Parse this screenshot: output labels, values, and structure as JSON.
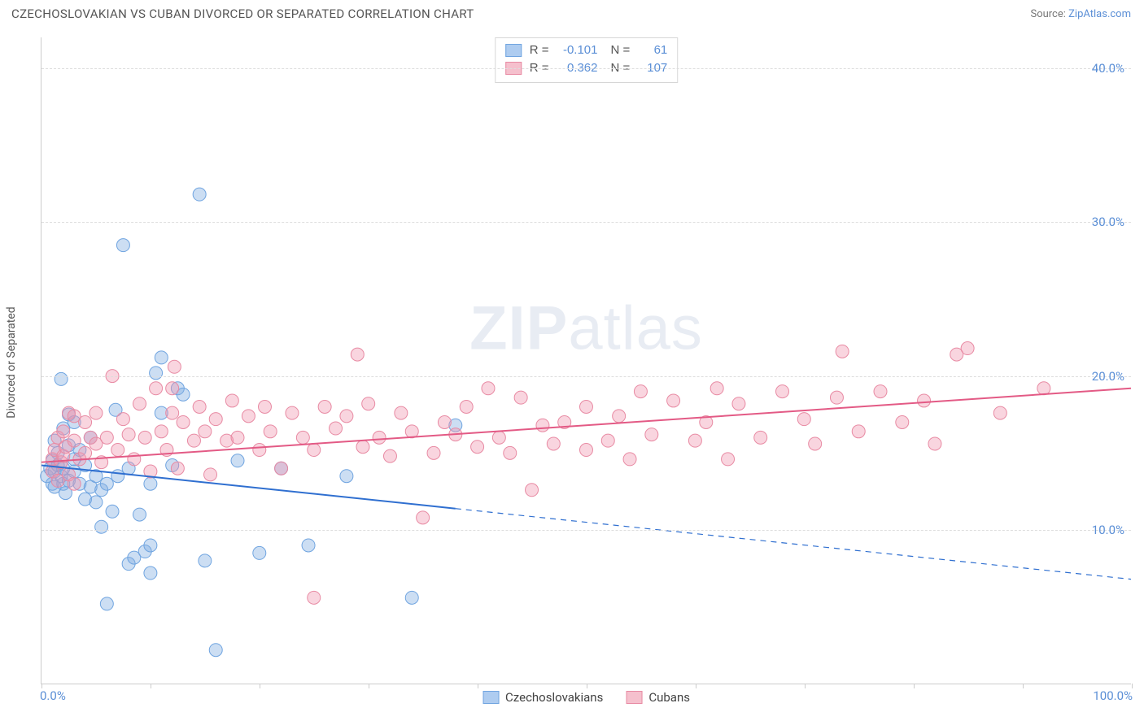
{
  "title": "CZECHOSLOVAKIAN VS CUBAN DIVORCED OR SEPARATED CORRELATION CHART",
  "source_prefix": "Source: ",
  "source_link": "ZipAtlas.com",
  "watermark": {
    "part1": "ZIP",
    "part2": "atlas"
  },
  "ylabel": "Divorced or Separated",
  "stats_legend": {
    "r_label": "R =",
    "n_label": "N =",
    "rows": [
      {
        "r": "-0.101",
        "n": "61",
        "fill": "#aeccf0",
        "stroke": "#6fa4e0"
      },
      {
        "r": "0.362",
        "n": "107",
        "fill": "#f5c0cd",
        "stroke": "#e88aa3"
      }
    ]
  },
  "bottom_legend": [
    {
      "label": "Czechoslovakians",
      "fill": "#aeccf0",
      "stroke": "#6fa4e0"
    },
    {
      "label": "Cubans",
      "fill": "#f5c0cd",
      "stroke": "#e88aa3"
    }
  ],
  "axes": {
    "xlim": [
      0,
      100
    ],
    "ylim": [
      0,
      42
    ],
    "xticks_minor": [
      0,
      10,
      20,
      30,
      40,
      50,
      60,
      70,
      80,
      90,
      100
    ],
    "xlim_labels": {
      "min": "0.0%",
      "max": "100.0%"
    },
    "yticks": [
      {
        "v": 10,
        "label": "10.0%"
      },
      {
        "v": 20,
        "label": "20.0%"
      },
      {
        "v": 30,
        "label": "30.0%"
      },
      {
        "v": 40,
        "label": "40.0%"
      }
    ]
  },
  "series": {
    "czech": {
      "color_fill": "rgba(128,172,224,0.40)",
      "color_stroke": "#6fa4e0",
      "marker_r": 8,
      "trend": {
        "y_at_x0": 14.2,
        "y_at_x100": 6.8,
        "solid_until_x": 38,
        "color": "#2f6fd0",
        "width": 2
      },
      "points": [
        [
          0.5,
          13.5
        ],
        [
          0.8,
          14.0
        ],
        [
          1.0,
          13.0
        ],
        [
          1.0,
          14.5
        ],
        [
          1.2,
          13.8
        ],
        [
          1.2,
          15.8
        ],
        [
          1.2,
          12.8
        ],
        [
          1.5,
          14.2
        ],
        [
          1.5,
          15.0
        ],
        [
          1.8,
          13.5
        ],
        [
          1.8,
          19.8
        ],
        [
          2.0,
          14.0
        ],
        [
          2.0,
          13.0
        ],
        [
          2.0,
          16.6
        ],
        [
          2.2,
          12.4
        ],
        [
          2.5,
          15.5
        ],
        [
          2.5,
          17.5
        ],
        [
          2.5,
          13.2
        ],
        [
          3.0,
          14.6
        ],
        [
          3.0,
          17.0
        ],
        [
          3.0,
          13.8
        ],
        [
          3.5,
          13.0
        ],
        [
          3.5,
          15.2
        ],
        [
          4.0,
          12.0
        ],
        [
          4.0,
          14.2
        ],
        [
          4.5,
          12.8
        ],
        [
          4.5,
          16.0
        ],
        [
          5.0,
          11.8
        ],
        [
          5.0,
          13.5
        ],
        [
          5.5,
          12.6
        ],
        [
          5.5,
          10.2
        ],
        [
          6.0,
          13.0
        ],
        [
          6.0,
          5.2
        ],
        [
          6.5,
          11.2
        ],
        [
          6.8,
          17.8
        ],
        [
          7.0,
          13.5
        ],
        [
          7.5,
          28.5
        ],
        [
          8.0,
          14.0
        ],
        [
          8.0,
          7.8
        ],
        [
          8.5,
          8.2
        ],
        [
          9.0,
          11.0
        ],
        [
          9.5,
          8.6
        ],
        [
          10.0,
          13.0
        ],
        [
          10.0,
          9.0
        ],
        [
          10.0,
          7.2
        ],
        [
          10.5,
          20.2
        ],
        [
          11.0,
          21.2
        ],
        [
          11.0,
          17.6
        ],
        [
          12.0,
          14.2
        ],
        [
          12.5,
          19.2
        ],
        [
          13.0,
          18.8
        ],
        [
          14.5,
          31.8
        ],
        [
          15.0,
          8.0
        ],
        [
          16.0,
          2.2
        ],
        [
          18.0,
          14.5
        ],
        [
          20.0,
          8.5
        ],
        [
          22.0,
          14.0
        ],
        [
          24.5,
          9.0
        ],
        [
          28.0,
          13.5
        ],
        [
          34.0,
          5.6
        ],
        [
          38.0,
          16.8
        ]
      ]
    },
    "cuban": {
      "color_fill": "rgba(240,150,175,0.40)",
      "color_stroke": "#e88aa3",
      "marker_r": 8,
      "trend": {
        "y_at_x0": 14.4,
        "y_at_x100": 19.2,
        "solid_until_x": 100,
        "color": "#e35a85",
        "width": 2
      },
      "points": [
        [
          1.0,
          13.8
        ],
        [
          1.0,
          14.6
        ],
        [
          1.2,
          15.2
        ],
        [
          1.5,
          13.2
        ],
        [
          1.5,
          16.0
        ],
        [
          1.8,
          14.4
        ],
        [
          2.0,
          14.8
        ],
        [
          2.0,
          16.4
        ],
        [
          2.2,
          15.4
        ],
        [
          2.5,
          17.6
        ],
        [
          2.5,
          13.6
        ],
        [
          3.0,
          15.8
        ],
        [
          3.0,
          17.4
        ],
        [
          3.0,
          13.0
        ],
        [
          3.5,
          14.6
        ],
        [
          4.0,
          17.0
        ],
        [
          4.0,
          15.0
        ],
        [
          4.5,
          16.0
        ],
        [
          5.0,
          15.6
        ],
        [
          5.0,
          17.6
        ],
        [
          5.5,
          14.4
        ],
        [
          6.0,
          16.0
        ],
        [
          6.5,
          20.0
        ],
        [
          7.0,
          15.2
        ],
        [
          7.5,
          17.2
        ],
        [
          8.0,
          16.2
        ],
        [
          8.5,
          14.6
        ],
        [
          9.0,
          18.2
        ],
        [
          9.5,
          16.0
        ],
        [
          10.0,
          13.8
        ],
        [
          10.5,
          19.2
        ],
        [
          11.0,
          16.4
        ],
        [
          11.5,
          15.2
        ],
        [
          12.0,
          17.6
        ],
        [
          12.0,
          19.2
        ],
        [
          12.2,
          20.6
        ],
        [
          12.5,
          14.0
        ],
        [
          13.0,
          17.0
        ],
        [
          14.0,
          15.8
        ],
        [
          14.5,
          18.0
        ],
        [
          15.0,
          16.4
        ],
        [
          15.5,
          13.6
        ],
        [
          16.0,
          17.2
        ],
        [
          17.0,
          15.8
        ],
        [
          17.5,
          18.4
        ],
        [
          18.0,
          16.0
        ],
        [
          19.0,
          17.4
        ],
        [
          20.0,
          15.2
        ],
        [
          20.5,
          18.0
        ],
        [
          21.0,
          16.4
        ],
        [
          22.0,
          14.0
        ],
        [
          23.0,
          17.6
        ],
        [
          24.0,
          16.0
        ],
        [
          25.0,
          15.2
        ],
        [
          25.0,
          5.6
        ],
        [
          26.0,
          18.0
        ],
        [
          27.0,
          16.6
        ],
        [
          28.0,
          17.4
        ],
        [
          29.0,
          21.4
        ],
        [
          29.5,
          15.4
        ],
        [
          30.0,
          18.2
        ],
        [
          31.0,
          16.0
        ],
        [
          32.0,
          14.8
        ],
        [
          33.0,
          17.6
        ],
        [
          34.0,
          16.4
        ],
        [
          35.0,
          10.8
        ],
        [
          36.0,
          15.0
        ],
        [
          37.0,
          17.0
        ],
        [
          38.0,
          16.2
        ],
        [
          39.0,
          18.0
        ],
        [
          40.0,
          15.4
        ],
        [
          41.0,
          19.2
        ],
        [
          42.0,
          16.0
        ],
        [
          43.0,
          15.0
        ],
        [
          44.0,
          18.6
        ],
        [
          45.0,
          12.6
        ],
        [
          46.0,
          16.8
        ],
        [
          47.0,
          15.6
        ],
        [
          48.0,
          17.0
        ],
        [
          50.0,
          18.0
        ],
        [
          50.0,
          15.2
        ],
        [
          52.0,
          15.8
        ],
        [
          53.0,
          17.4
        ],
        [
          54.0,
          14.6
        ],
        [
          55.0,
          19.0
        ],
        [
          56.0,
          16.2
        ],
        [
          58.0,
          18.4
        ],
        [
          60.0,
          15.8
        ],
        [
          61.0,
          17.0
        ],
        [
          62.0,
          19.2
        ],
        [
          63.0,
          14.6
        ],
        [
          64.0,
          18.2
        ],
        [
          66.0,
          16.0
        ],
        [
          68.0,
          19.0
        ],
        [
          70.0,
          17.2
        ],
        [
          71.0,
          15.6
        ],
        [
          73.0,
          18.6
        ],
        [
          73.5,
          21.6
        ],
        [
          75.0,
          16.4
        ],
        [
          77.0,
          19.0
        ],
        [
          79.0,
          17.0
        ],
        [
          81.0,
          18.4
        ],
        [
          82.0,
          15.6
        ],
        [
          84.0,
          21.4
        ],
        [
          85.0,
          21.8
        ],
        [
          88.0,
          17.6
        ],
        [
          92.0,
          19.2
        ]
      ]
    }
  }
}
